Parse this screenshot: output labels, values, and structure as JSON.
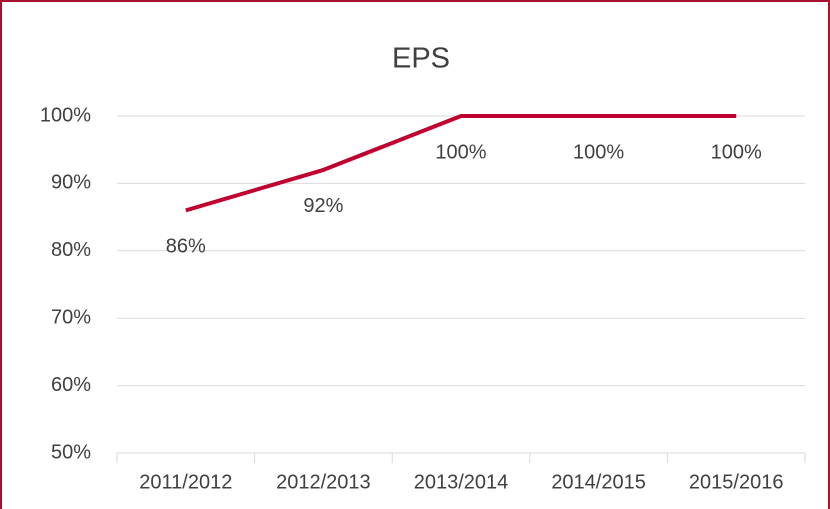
{
  "chart_data": {
    "type": "line",
    "title": "EPS",
    "categories": [
      "2011/2012",
      "2012/2013",
      "2013/2014",
      "2014/2015",
      "2015/2016"
    ],
    "values": [
      86,
      92,
      100,
      100,
      100
    ],
    "value_labels": [
      "86%",
      "92%",
      "100%",
      "100%",
      "100%"
    ],
    "color": "#c0002f",
    "ylim": [
      50,
      100
    ],
    "yticks": [
      {
        "value": 50,
        "label": "50%"
      },
      {
        "value": 60,
        "label": "60%"
      },
      {
        "value": 70,
        "label": "70%"
      },
      {
        "value": 80,
        "label": "80%"
      },
      {
        "value": 90,
        "label": "90%"
      },
      {
        "value": 100,
        "label": "100%"
      }
    ],
    "grid": true
  }
}
